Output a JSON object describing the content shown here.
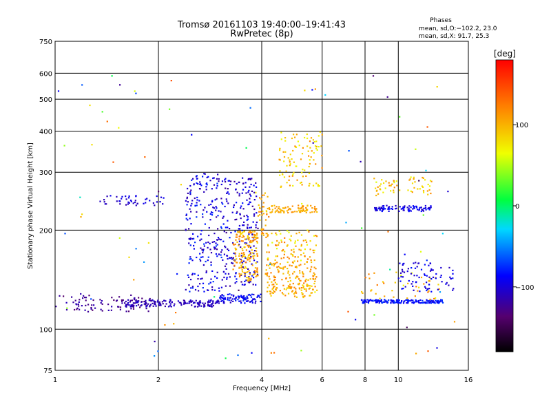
{
  "chart_data": {
    "type": "scatter",
    "title": "Tromsø 20161103 19:40:00–19:41:43",
    "subtitle": "RwPretec (8p)",
    "xlabel": "Frequency [MHz]",
    "ylabel": "Stationary phase Virtual Height [km]",
    "x_scale": "log",
    "y_scale": "log",
    "xlim": [
      1,
      16
    ],
    "ylim": [
      75,
      750
    ],
    "x_ticks": [
      1,
      2,
      4,
      6,
      8,
      10,
      16
    ],
    "y_ticks": [
      75,
      100,
      200,
      300,
      400,
      500,
      600,
      750
    ],
    "grid": true,
    "phase_info": {
      "heading": "Phases",
      "line1": "mean, sd,O:−102.2, 23.0",
      "line2": "mean, sd,X:  91.7, 25.3"
    },
    "colorbar": {
      "label": "[deg]",
      "range": [
        -180,
        180
      ],
      "ticks": [
        {
          "value": 100,
          "label": "100"
        },
        {
          "value": 0,
          "label": "0"
        },
        {
          "value": -100,
          "label": "−100"
        }
      ]
    },
    "clusters": [
      {
        "x": [
          1.0,
          1.9
        ],
        "y": [
          113,
          127
        ],
        "phase": [
          -140,
          -110
        ],
        "count": 90
      },
      {
        "x": [
          1.6,
          3.0
        ],
        "y": [
          117,
          123
        ],
        "phase": [
          -120,
          -100
        ],
        "count": 160
      },
      {
        "x": [
          3.0,
          4.0
        ],
        "y": [
          120,
          128
        ],
        "phase": [
          -110,
          -70
        ],
        "count": 90
      },
      {
        "x": [
          2.4,
          3.1
        ],
        "y": [
          130,
          300
        ],
        "phase": [
          -120,
          -70
        ],
        "count": 230
      },
      {
        "x": [
          3.1,
          3.9
        ],
        "y": [
          135,
          290
        ],
        "phase": [
          -125,
          -80
        ],
        "count": 210
      },
      {
        "x": [
          3.3,
          3.9
        ],
        "y": [
          140,
          200
        ],
        "phase": [
          80,
          130
        ],
        "count": 170
      },
      {
        "x": [
          3.9,
          4.2
        ],
        "y": [
          190,
          260
        ],
        "phase": [
          80,
          130
        ],
        "count": 40
      },
      {
        "x": [
          4.1,
          5.8
        ],
        "y": [
          125,
          160
        ],
        "phase": [
          80,
          125
        ],
        "count": 190
      },
      {
        "x": [
          4.1,
          5.8
        ],
        "y": [
          160,
          200
        ],
        "phase": [
          60,
          130
        ],
        "count": 90
      },
      {
        "x": [
          4.2,
          5.8
        ],
        "y": [
          226,
          238
        ],
        "phase": [
          90,
          120
        ],
        "count": 80
      },
      {
        "x": [
          4.5,
          6.0
        ],
        "y": [
          270,
          400
        ],
        "phase": [
          60,
          120
        ],
        "count": 100
      },
      {
        "x": [
          7.8,
          13.5
        ],
        "y": [
          120,
          123
        ],
        "phase": [
          -100,
          -70
        ],
        "count": 170
      },
      {
        "x": [
          7.8,
          13.5
        ],
        "y": [
          123,
          150
        ],
        "phase": [
          60,
          130
        ],
        "count": 40
      },
      {
        "x": [
          8.5,
          12.5
        ],
        "y": [
          228,
          238
        ],
        "phase": [
          -110,
          -80
        ],
        "count": 90
      },
      {
        "x": [
          8.5,
          12.5
        ],
        "y": [
          255,
          290
        ],
        "phase": [
          60,
          120
        ],
        "count": 60
      },
      {
        "x": [
          10.0,
          14.5
        ],
        "y": [
          130,
          160
        ],
        "phase": [
          -110,
          -80
        ],
        "count": 80
      },
      {
        "x": [
          1.35,
          2.1
        ],
        "y": [
          237,
          255
        ],
        "phase": [
          -115,
          -90
        ],
        "count": 45
      },
      {
        "x": [
          1.0,
          15.0
        ],
        "y": [
          80,
          600
        ],
        "phase": [
          -150,
          150
        ],
        "count": 90
      }
    ]
  }
}
